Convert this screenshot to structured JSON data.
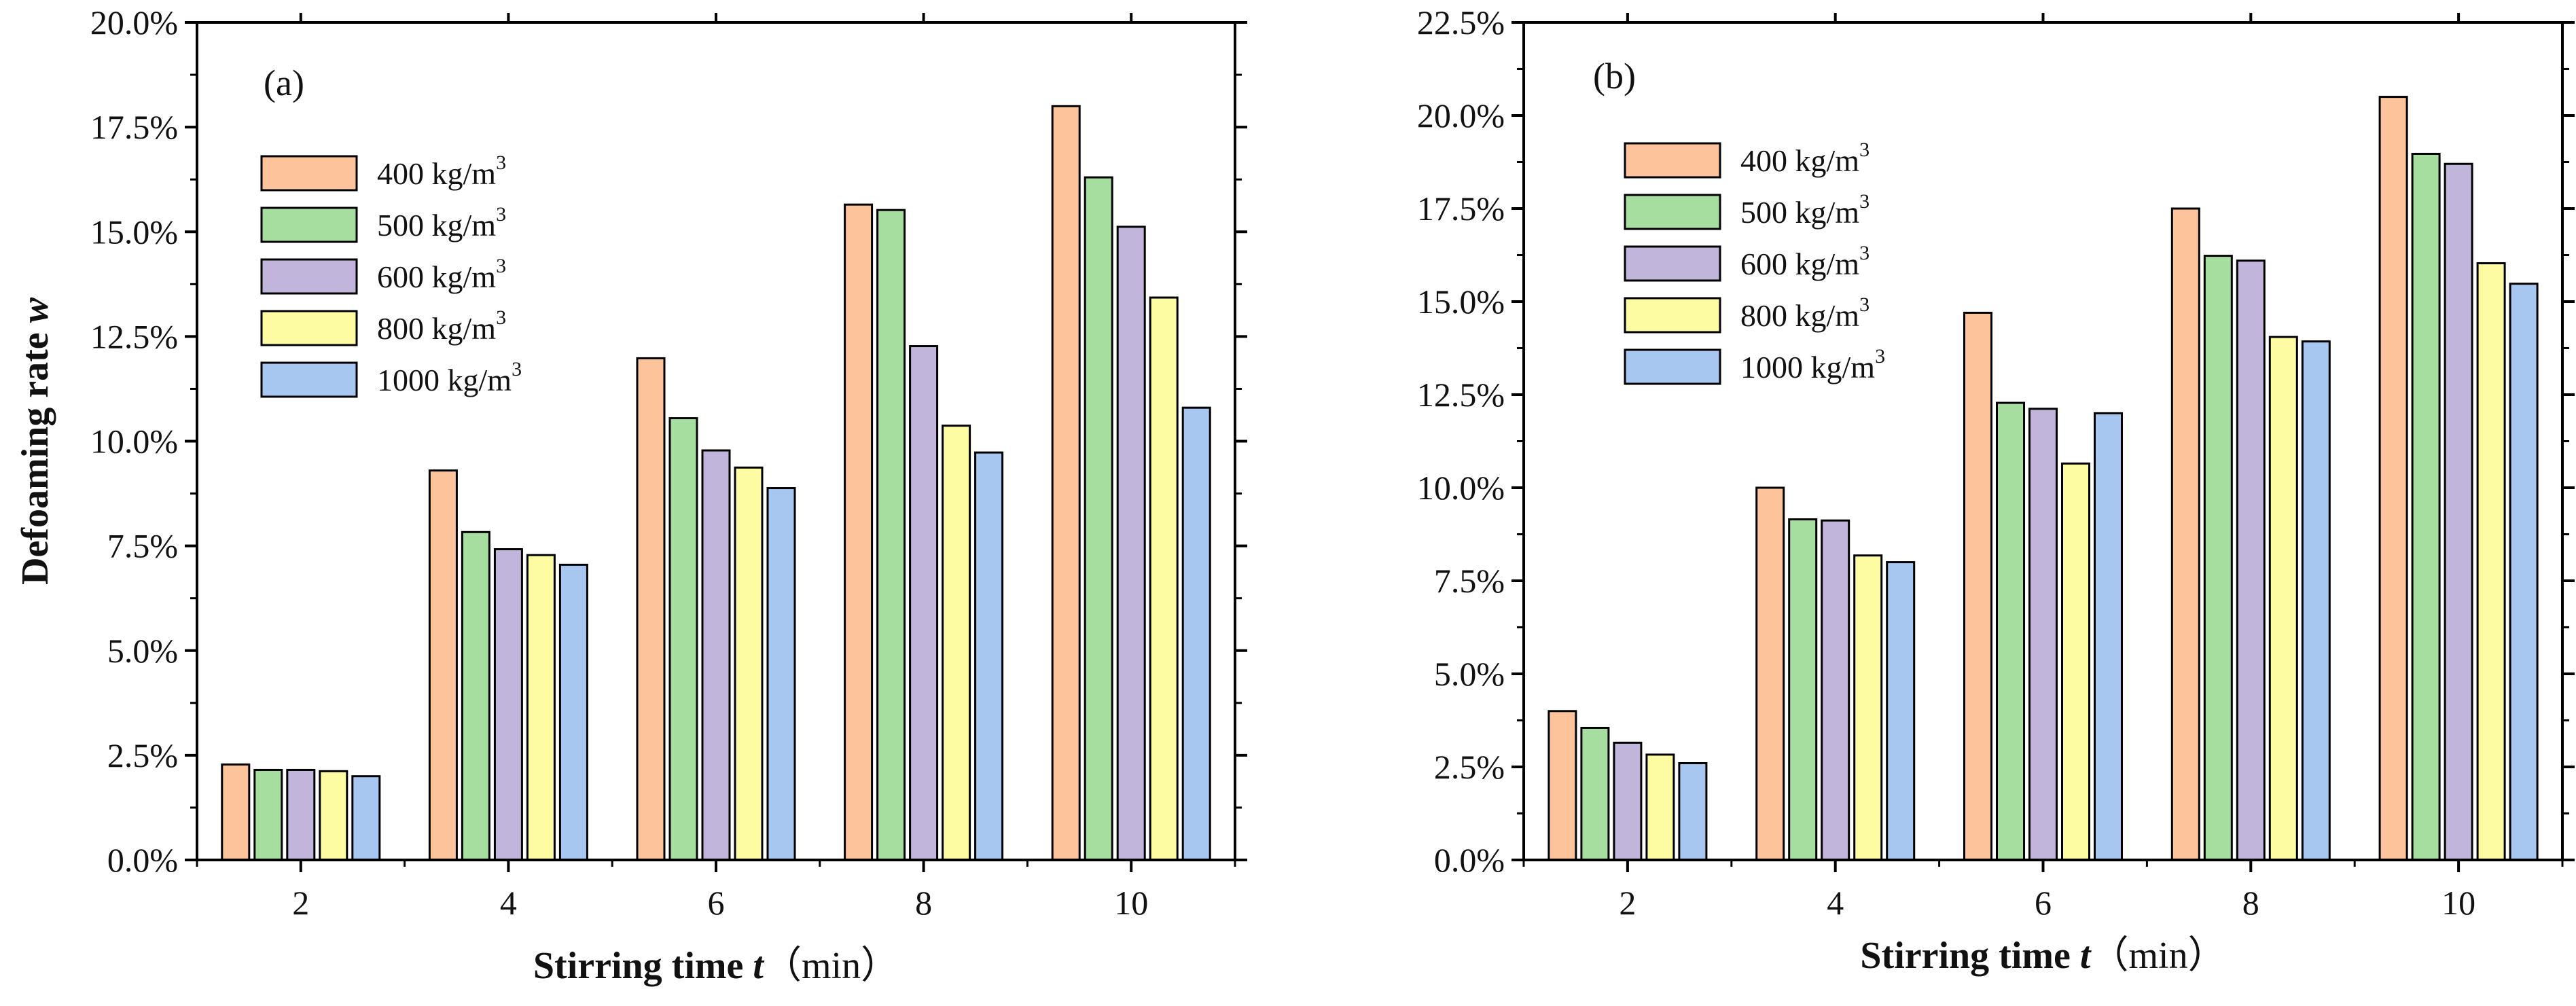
{
  "chart_data": [
    {
      "type": "bar",
      "panel_label": "(a)",
      "xlabel": {
        "main": "Stirring time ",
        "var": "t",
        "unit": "（min）"
      },
      "ylabel": {
        "main": "Defoaming rate ",
        "var": "w"
      },
      "categories": [
        "2",
        "4",
        "6",
        "8",
        "10"
      ],
      "ylim": [
        0,
        20
      ],
      "yticks": [
        0,
        2.5,
        5,
        7.5,
        10,
        12.5,
        15,
        17.5,
        20
      ],
      "ytick_labels": [
        "0.0%",
        "2.5%",
        "5.0%",
        "7.5%",
        "10.0%",
        "12.5%",
        "15.0%",
        "17.5%",
        "20.0%"
      ],
      "legend_position": "left",
      "series": [
        {
          "name": "400 kg/m",
          "sup": "3",
          "color": "#fdc49c",
          "values": [
            2.28,
            9.3,
            11.98,
            15.65,
            18.0
          ]
        },
        {
          "name": "500 kg/m",
          "sup": "3",
          "color": "#a6dea0",
          "values": [
            2.15,
            7.83,
            10.55,
            15.52,
            16.3
          ]
        },
        {
          "name": "600 kg/m",
          "sup": "3",
          "color": "#c2b5dc",
          "values": [
            2.15,
            7.42,
            9.78,
            12.27,
            15.12
          ]
        },
        {
          "name": "800 kg/m",
          "sup": "3",
          "color": "#fefca2",
          "values": [
            2.12,
            7.28,
            9.37,
            10.37,
            13.43
          ]
        },
        {
          "name": "1000 kg/m",
          "sup": "3",
          "color": "#a8c7f0",
          "values": [
            2.0,
            7.05,
            8.88,
            9.73,
            10.8
          ]
        }
      ]
    },
    {
      "type": "bar",
      "panel_label": "(b)",
      "xlabel": {
        "main": "Stirring time ",
        "var": "t",
        "unit": "（min）"
      },
      "ylabel": {
        "main": "",
        "var": ""
      },
      "categories": [
        "2",
        "4",
        "6",
        "8",
        "10"
      ],
      "ylim": [
        0,
        22.5
      ],
      "yticks": [
        0,
        2.5,
        5,
        7.5,
        10,
        12.5,
        15,
        17.5,
        20,
        22.5
      ],
      "ytick_labels": [
        "0.0%",
        "2.5%",
        "5.0%",
        "7.5%",
        "10.0%",
        "12.5%",
        "15.0%",
        "17.5%",
        "20.0%",
        "22.5%"
      ],
      "legend_position": "top-left",
      "series": [
        {
          "name": "400 kg/m",
          "sup": "3",
          "color": "#fdc49c",
          "values": [
            4.0,
            10.0,
            14.7,
            17.5,
            20.5
          ]
        },
        {
          "name": "500 kg/m",
          "sup": "3",
          "color": "#a6dea0",
          "values": [
            3.55,
            9.15,
            12.28,
            16.23,
            18.97
          ]
        },
        {
          "name": "600 kg/m",
          "sup": "3",
          "color": "#c2b5dc",
          "values": [
            3.15,
            9.12,
            12.12,
            16.1,
            18.7
          ]
        },
        {
          "name": "800 kg/m",
          "sup": "3",
          "color": "#fefca2",
          "values": [
            2.83,
            8.18,
            10.65,
            14.05,
            16.03
          ]
        },
        {
          "name": "1000 kg/m",
          "sup": "3",
          "color": "#a8c7f0",
          "values": [
            2.6,
            8.0,
            12.0,
            13.93,
            15.48
          ]
        }
      ]
    }
  ]
}
